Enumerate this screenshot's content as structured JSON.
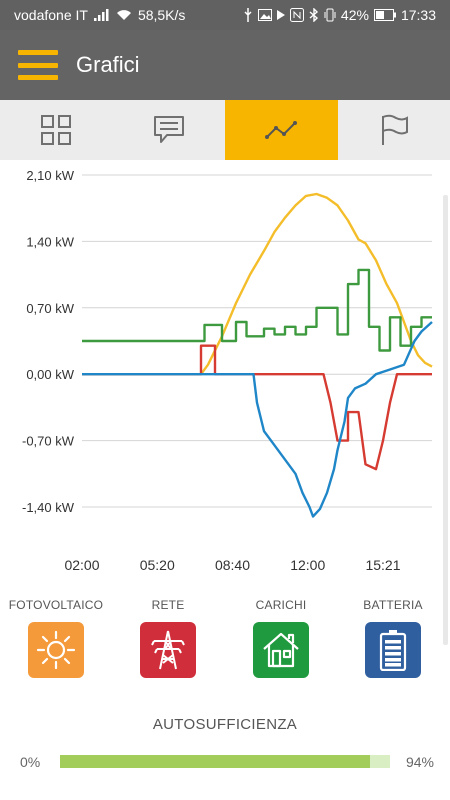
{
  "status_bar": {
    "carrier": "vodafone IT",
    "speed": "58,5K/s",
    "battery": "42%",
    "time": "17:33"
  },
  "app_bar": {
    "title": "Grafici"
  },
  "tabs": [
    {
      "icon": "grid-icon",
      "active": false
    },
    {
      "icon": "message-icon",
      "active": false
    },
    {
      "icon": "line-chart-icon",
      "active": true
    },
    {
      "icon": "flag-icon",
      "active": false
    }
  ],
  "chart_data": {
    "type": "line",
    "x_ticks": [
      "02:00",
      "05:20",
      "08:40",
      "12:00",
      "15:21"
    ],
    "y_ticks": [
      "2,10 kW",
      "1,40 kW",
      "0,70 kW",
      "0,00 kW",
      "-0,70 kW",
      "-1,40 kW"
    ],
    "ylim": [
      -1.4,
      2.1
    ],
    "grid": true,
    "series": [
      {
        "color": "#f4bd2a",
        "points": [
          [
            0,
            0
          ],
          [
            0.34,
            0
          ],
          [
            0.36,
            0.1
          ],
          [
            0.4,
            0.4
          ],
          [
            0.44,
            0.75
          ],
          [
            0.48,
            1.05
          ],
          [
            0.52,
            1.3
          ],
          [
            0.55,
            1.5
          ],
          [
            0.58,
            1.65
          ],
          [
            0.61,
            1.78
          ],
          [
            0.64,
            1.88
          ],
          [
            0.67,
            1.9
          ],
          [
            0.7,
            1.86
          ],
          [
            0.73,
            1.78
          ],
          [
            0.76,
            1.62
          ],
          [
            0.79,
            1.42
          ],
          [
            0.81,
            1.38
          ],
          [
            0.84,
            1.2
          ],
          [
            0.87,
            0.95
          ],
          [
            0.9,
            0.75
          ],
          [
            0.92,
            0.55
          ],
          [
            0.94,
            0.35
          ],
          [
            0.96,
            0.2
          ],
          [
            0.98,
            0.12
          ],
          [
            1.0,
            0.08
          ]
        ]
      },
      {
        "color": "#3e9a3e",
        "points": [
          [
            0,
            0.35
          ],
          [
            0.33,
            0.35
          ],
          [
            0.35,
            0.35
          ],
          [
            0.35,
            0.52
          ],
          [
            0.4,
            0.52
          ],
          [
            0.4,
            0.35
          ],
          [
            0.44,
            0.35
          ],
          [
            0.44,
            0.55
          ],
          [
            0.47,
            0.55
          ],
          [
            0.47,
            0.4
          ],
          [
            0.52,
            0.4
          ],
          [
            0.52,
            0.48
          ],
          [
            0.55,
            0.48
          ],
          [
            0.55,
            0.42
          ],
          [
            0.58,
            0.42
          ],
          [
            0.58,
            0.5
          ],
          [
            0.61,
            0.5
          ],
          [
            0.61,
            0.42
          ],
          [
            0.64,
            0.42
          ],
          [
            0.64,
            0.5
          ],
          [
            0.67,
            0.5
          ],
          [
            0.67,
            0.7
          ],
          [
            0.73,
            0.7
          ],
          [
            0.73,
            0.42
          ],
          [
            0.76,
            0.42
          ],
          [
            0.76,
            0.95
          ],
          [
            0.79,
            0.95
          ],
          [
            0.79,
            1.1
          ],
          [
            0.82,
            1.1
          ],
          [
            0.82,
            0.5
          ],
          [
            0.85,
            0.5
          ],
          [
            0.85,
            0.25
          ],
          [
            0.88,
            0.25
          ],
          [
            0.88,
            0.6
          ],
          [
            0.91,
            0.6
          ],
          [
            0.91,
            0.3
          ],
          [
            0.94,
            0.3
          ],
          [
            0.94,
            0.5
          ],
          [
            0.97,
            0.5
          ],
          [
            0.97,
            0.6
          ],
          [
            1.0,
            0.6
          ]
        ]
      },
      {
        "color": "#d63b32",
        "points": [
          [
            0,
            0
          ],
          [
            0.34,
            0
          ],
          [
            0.34,
            0.3
          ],
          [
            0.38,
            0.3
          ],
          [
            0.38,
            0
          ],
          [
            0.69,
            0
          ],
          [
            0.71,
            -0.3
          ],
          [
            0.73,
            -0.7
          ],
          [
            0.76,
            -0.7
          ],
          [
            0.76,
            -0.4
          ],
          [
            0.79,
            -0.4
          ],
          [
            0.81,
            -0.95
          ],
          [
            0.84,
            -1.0
          ],
          [
            0.86,
            -0.7
          ],
          [
            0.88,
            -0.3
          ],
          [
            0.9,
            0
          ],
          [
            1.0,
            0
          ]
        ]
      },
      {
        "color": "#1f86c8",
        "points": [
          [
            0,
            0
          ],
          [
            0.49,
            0
          ],
          [
            0.5,
            -0.3
          ],
          [
            0.52,
            -0.6
          ],
          [
            0.55,
            -0.75
          ],
          [
            0.58,
            -0.9
          ],
          [
            0.61,
            -1.05
          ],
          [
            0.63,
            -1.25
          ],
          [
            0.65,
            -1.4
          ],
          [
            0.66,
            -1.5
          ],
          [
            0.68,
            -1.42
          ],
          [
            0.7,
            -1.25
          ],
          [
            0.72,
            -1.0
          ],
          [
            0.73,
            -0.8
          ],
          [
            0.75,
            -0.5
          ],
          [
            0.76,
            -0.25
          ],
          [
            0.78,
            -0.15
          ],
          [
            0.81,
            -0.1
          ],
          [
            0.84,
            0
          ],
          [
            0.88,
            0.05
          ],
          [
            0.92,
            0.1
          ],
          [
            0.95,
            0.35
          ],
          [
            0.97,
            0.45
          ],
          [
            1.0,
            0.55
          ]
        ]
      }
    ]
  },
  "categories": [
    {
      "label": "FOTOVOLTAICO",
      "icon": "sun-icon",
      "color": "#f49a3a"
    },
    {
      "label": "RETE",
      "icon": "power-tower-icon",
      "color": "#cf2e3a"
    },
    {
      "label": "CARICHI",
      "icon": "house-icon",
      "color": "#1f9a3e"
    },
    {
      "label": "BATTERIA",
      "icon": "battery-icon",
      "color": "#2f5f9e"
    }
  ],
  "self_sufficiency": {
    "title": "AUTOSUFFICIENZA",
    "min_label": "0%",
    "max_label": "94%",
    "value": 0.94
  }
}
